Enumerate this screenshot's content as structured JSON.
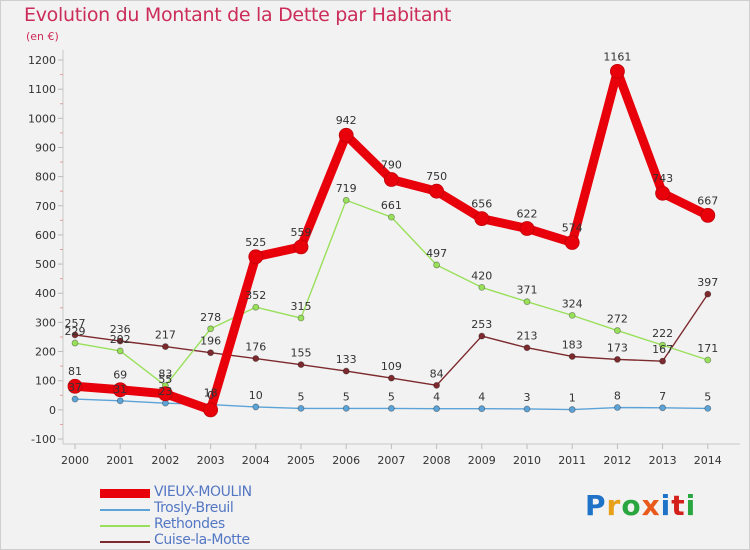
{
  "title": "Evolution du Montant de la Dette par Habitant",
  "subtitle": "(en €)",
  "logo": {
    "text": "Proxiti",
    "colors": [
      "#1e73c8",
      "#e8a019",
      "#2aa640",
      "#e8591b",
      "#1e73c8",
      "#d4201b",
      "#2aa640"
    ]
  },
  "chart_data": {
    "type": "line",
    "x": [
      "2000",
      "2001",
      "2002",
      "2003",
      "2004",
      "2005",
      "2006",
      "2007",
      "2008",
      "2009",
      "2010",
      "2011",
      "2012",
      "2013",
      "2014"
    ],
    "ylim": [
      -100,
      1200
    ],
    "yticks": [
      -100,
      0,
      100,
      200,
      300,
      400,
      500,
      600,
      700,
      800,
      900,
      1000,
      1100,
      1200
    ],
    "grid": false,
    "legend_placement": "bottom-left",
    "series": [
      {
        "name": "VIEUX-MOULIN",
        "color": "#e8000b",
        "values": [
          81,
          69,
          55,
          0,
          525,
          559,
          942,
          790,
          750,
          656,
          622,
          574,
          1161,
          743,
          667
        ]
      },
      {
        "name": "Trosly-Breuil",
        "color": "#5ca3d8",
        "values": [
          37,
          31,
          23,
          18,
          10,
          5,
          5,
          5,
          4,
          4,
          3,
          1,
          8,
          7,
          5
        ]
      },
      {
        "name": "Rethondes",
        "color": "#99e05a",
        "values": [
          229,
          202,
          83,
          278,
          352,
          315,
          719,
          661,
          497,
          420,
          371,
          324,
          272,
          222,
          171
        ]
      },
      {
        "name": "Cuise-la-Motte",
        "color": "#7d2a2e",
        "values": [
          257,
          236,
          217,
          196,
          176,
          155,
          133,
          109,
          84,
          253,
          213,
          183,
          173,
          167,
          397
        ]
      }
    ]
  }
}
